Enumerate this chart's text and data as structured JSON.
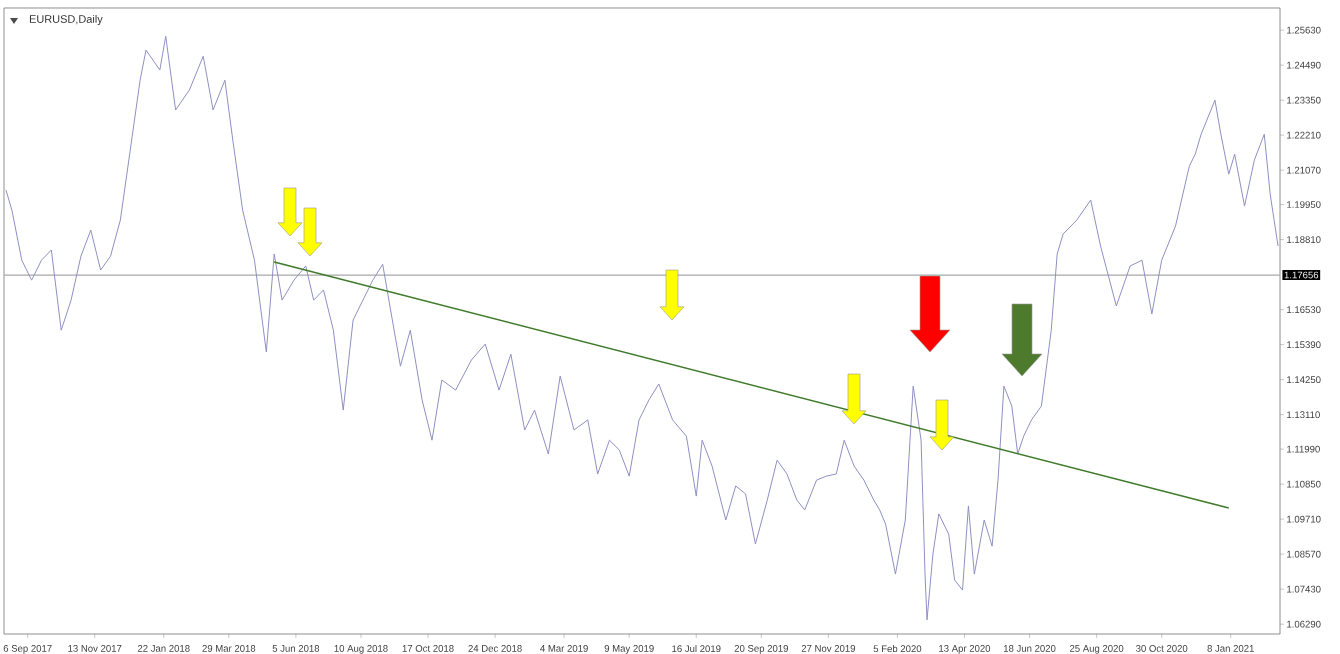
{
  "chart_data": {
    "type": "line",
    "title": "EURUSD,Daily",
    "series": [
      {
        "type": "line",
        "color": "#8f8fc4",
        "x": [
          "2017-08-15",
          "2017-08-21",
          "2017-08-31",
          "2017-09-10",
          "2017-09-20",
          "2017-09-30",
          "2017-10-10",
          "2017-10-20",
          "2017-10-30",
          "2017-11-09",
          "2017-11-19",
          "2017-11-29",
          "2017-12-09",
          "2017-12-19",
          "2017-12-29",
          "2018-01-04",
          "2018-01-18",
          "2018-01-24",
          "2018-02-03",
          "2018-02-17",
          "2018-03-03",
          "2018-03-13",
          "2018-03-25",
          "2018-04-02",
          "2018-04-12",
          "2018-04-24",
          "2018-05-06",
          "2018-05-14",
          "2018-05-22",
          "2018-06-03",
          "2018-06-15",
          "2018-06-23",
          "2018-07-03",
          "2018-07-13",
          "2018-07-23",
          "2018-08-02",
          "2018-08-12",
          "2018-08-22",
          "2018-09-01",
          "2018-09-09",
          "2018-09-19",
          "2018-09-29",
          "2018-10-11",
          "2018-10-21",
          "2018-10-31",
          "2018-11-14",
          "2018-11-30",
          "2018-12-14",
          "2018-12-28",
          "2019-01-09",
          "2019-01-23",
          "2019-02-02",
          "2019-02-16",
          "2019-02-28",
          "2019-03-14",
          "2019-03-28",
          "2019-04-07",
          "2019-04-19",
          "2019-04-29",
          "2019-05-09",
          "2019-05-19",
          "2019-05-29",
          "2019-06-08",
          "2019-06-22",
          "2019-07-06",
          "2019-07-16",
          "2019-07-22",
          "2019-08-01",
          "2019-08-15",
          "2019-08-25",
          "2019-09-04",
          "2019-09-14",
          "2019-09-26",
          "2019-10-06",
          "2019-10-16",
          "2019-10-26",
          "2019-11-03",
          "2019-11-15",
          "2019-11-25",
          "2019-12-05",
          "2019-12-13",
          "2019-12-23",
          "2020-01-02",
          "2020-01-12",
          "2020-01-18",
          "2020-01-24",
          "2020-02-03",
          "2020-02-13",
          "2020-02-21",
          "2020-02-29",
          "2020-03-04",
          "2020-03-06",
          "2020-03-12",
          "2020-03-18",
          "2020-03-28",
          "2020-04-03",
          "2020-04-11",
          "2020-04-17",
          "2020-04-23",
          "2020-05-03",
          "2020-05-11",
          "2020-05-17",
          "2020-05-23",
          "2020-05-31",
          "2020-06-06",
          "2020-06-12",
          "2020-06-20",
          "2020-06-30",
          "2020-07-10",
          "2020-07-16",
          "2020-07-22",
          "2020-08-05",
          "2020-08-19",
          "2020-08-29",
          "2020-09-14",
          "2020-09-28",
          "2020-10-10",
          "2020-10-20",
          "2020-10-30",
          "2020-11-13",
          "2020-11-27",
          "2020-12-03",
          "2020-12-09",
          "2020-12-23",
          "2020-12-29",
          "2021-01-06",
          "2021-01-12",
          "2021-01-22",
          "2021-02-01",
          "2021-02-11",
          "2021-02-17",
          "2021-02-25"
        ],
        "values": [
          1.2042,
          1.1977,
          1.1814,
          1.1749,
          1.1814,
          1.1847,
          1.1586,
          1.1684,
          1.1827,
          1.1912,
          1.1782,
          1.1827,
          1.1945,
          1.2172,
          1.24,
          1.2498,
          1.2433,
          1.2543,
          1.2303,
          1.2368,
          1.2478,
          1.2303,
          1.24,
          1.2205,
          1.1977,
          1.1814,
          1.1515,
          1.1834,
          1.1684,
          1.1749,
          1.1795,
          1.1684,
          1.1717,
          1.1586,
          1.1326,
          1.1619,
          1.1684,
          1.1749,
          1.1801,
          1.1652,
          1.1469,
          1.1586,
          1.1359,
          1.1228,
          1.1424,
          1.1391,
          1.1489,
          1.1541,
          1.1391,
          1.1508,
          1.1261,
          1.1326,
          1.1183,
          1.1437,
          1.1261,
          1.1294,
          1.1118,
          1.1228,
          1.1196,
          1.1111,
          1.1294,
          1.1359,
          1.1411,
          1.1294,
          1.1241,
          1.1046,
          1.1228,
          1.1144,
          1.0968,
          1.1079,
          1.1053,
          1.089,
          1.1033,
          1.1163,
          1.1118,
          1.1033,
          1.1001,
          1.1098,
          1.1111,
          1.1118,
          1.1228,
          1.1144,
          1.1098,
          1.1033,
          1.1001,
          1.0955,
          1.0792,
          1.0968,
          1.1404,
          1.1228,
          1.0792,
          1.0643,
          1.0857,
          1.0988,
          1.0922,
          1.0773,
          1.074,
          1.1014,
          1.0792,
          1.0968,
          1.0883,
          1.1098,
          1.1404,
          1.1339,
          1.1183,
          1.1241,
          1.1294,
          1.1339,
          1.1586,
          1.1834,
          1.1899,
          1.1945,
          1.201,
          1.186,
          1.1665,
          1.1795,
          1.1814,
          1.1639,
          1.1814,
          1.1925,
          1.212,
          1.2159,
          1.2224,
          1.2335,
          1.2224,
          1.2094,
          1.2159,
          1.199,
          1.214,
          1.2224,
          1.2029,
          1.186
        ]
      },
      {
        "type": "line",
        "color": "#3f7a2a",
        "x": [
          "2018-05-14",
          "2021-01-06"
        ],
        "values": [
          1.1808,
          1.1007
        ]
      }
    ],
    "xlim": [
      "2017-08-13",
      "2021-02-27"
    ],
    "xticks": [
      {
        "value": "2017-09-06",
        "label": "6 Sep 2017"
      },
      {
        "value": "2017-11-13",
        "label": "13 Nov 2017"
      },
      {
        "value": "2018-01-22",
        "label": "22 Jan 2018"
      },
      {
        "value": "2018-03-29",
        "label": "29 Mar 2018"
      },
      {
        "value": "2018-06-05",
        "label": "5 Jun 2018"
      },
      {
        "value": "2018-08-10",
        "label": "10 Aug 2018"
      },
      {
        "value": "2018-10-17",
        "label": "17 Oct 2018"
      },
      {
        "value": "2018-12-24",
        "label": "24 Dec 2018"
      },
      {
        "value": "2019-03-04",
        "label": "4 Mar 2019"
      },
      {
        "value": "2019-05-09",
        "label": "9 May 2019"
      },
      {
        "value": "2019-07-16",
        "label": "16 Jul 2019"
      },
      {
        "value": "2019-09-20",
        "label": "20 Sep 2019"
      },
      {
        "value": "2019-11-27",
        "label": "27 Nov 2019"
      },
      {
        "value": "2020-02-05",
        "label": "5 Feb 2020"
      },
      {
        "value": "2020-04-13",
        "label": "13 Apr 2020"
      },
      {
        "value": "2020-06-18",
        "label": "18 Jun 2020"
      },
      {
        "value": "2020-08-25",
        "label": "25 Aug 2020"
      },
      {
        "value": "2020-10-30",
        "label": "30 Oct 2020"
      },
      {
        "value": "2021-01-08",
        "label": "8 Jan 2021"
      }
    ],
    "ylim": [
      1.0597,
      1.2635
    ],
    "yticks": [
      {
        "value": 1.2563,
        "label": "1.25630"
      },
      {
        "value": 1.2449,
        "label": "1.24490"
      },
      {
        "value": 1.2335,
        "label": "1.23350"
      },
      {
        "value": 1.2221,
        "label": "1.22210"
      },
      {
        "value": 1.2107,
        "label": "1.21070"
      },
      {
        "value": 1.1995,
        "label": "1.19950"
      },
      {
        "value": 1.1881,
        "label": "1.18810"
      },
      {
        "value": 1.1653,
        "label": "1.16530"
      },
      {
        "value": 1.1539,
        "label": "1.15390"
      },
      {
        "value": 1.1425,
        "label": "1.14250"
      },
      {
        "value": 1.1311,
        "label": "1.13110"
      },
      {
        "value": 1.1199,
        "label": "1.11990"
      },
      {
        "value": 1.1085,
        "label": "1.10850"
      },
      {
        "value": 1.0971,
        "label": "1.09710"
      },
      {
        "value": 1.0857,
        "label": "1.08570"
      },
      {
        "value": 1.0743,
        "label": "1.07430"
      },
      {
        "value": 1.0629,
        "label": "1.06290"
      }
    ],
    "ref_lines": [
      {
        "axis": "y",
        "value": 1.17656,
        "label": "1.17656",
        "color": "#a8a8a8"
      }
    ]
  }
}
